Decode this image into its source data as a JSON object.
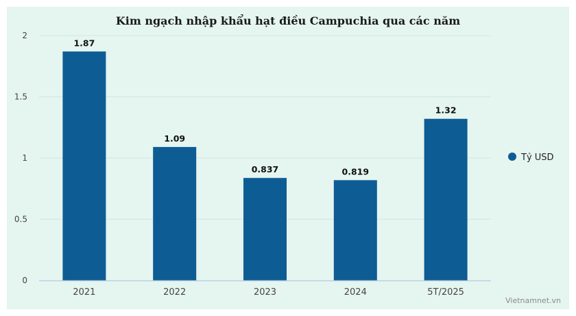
{
  "chart_data": {
    "type": "bar",
    "title": "Kim ngạch nhập khẩu hạt điều Campuchia qua các năm",
    "categories": [
      "2021",
      "2022",
      "2023",
      "2024",
      "5T/2025"
    ],
    "series": [
      {
        "name": "Tỷ USD",
        "values": [
          1.87,
          1.09,
          0.837,
          0.819,
          1.32
        ],
        "labels": [
          "1.87",
          "1.09",
          "0.837",
          "0.819",
          "1.32"
        ],
        "color": "#0e5c94"
      }
    ],
    "yticks": [
      "0",
      "0.5",
      "1",
      "1.5",
      "2"
    ],
    "ylim": [
      0,
      2
    ],
    "xlabel": "",
    "ylabel": "",
    "grid": true,
    "legend_position": "right"
  },
  "credit": "Vietnamnet.vn",
  "colors": {
    "background": "#e5f5f0",
    "bar": "#0e5c94",
    "grid": "#d2e6e0"
  }
}
